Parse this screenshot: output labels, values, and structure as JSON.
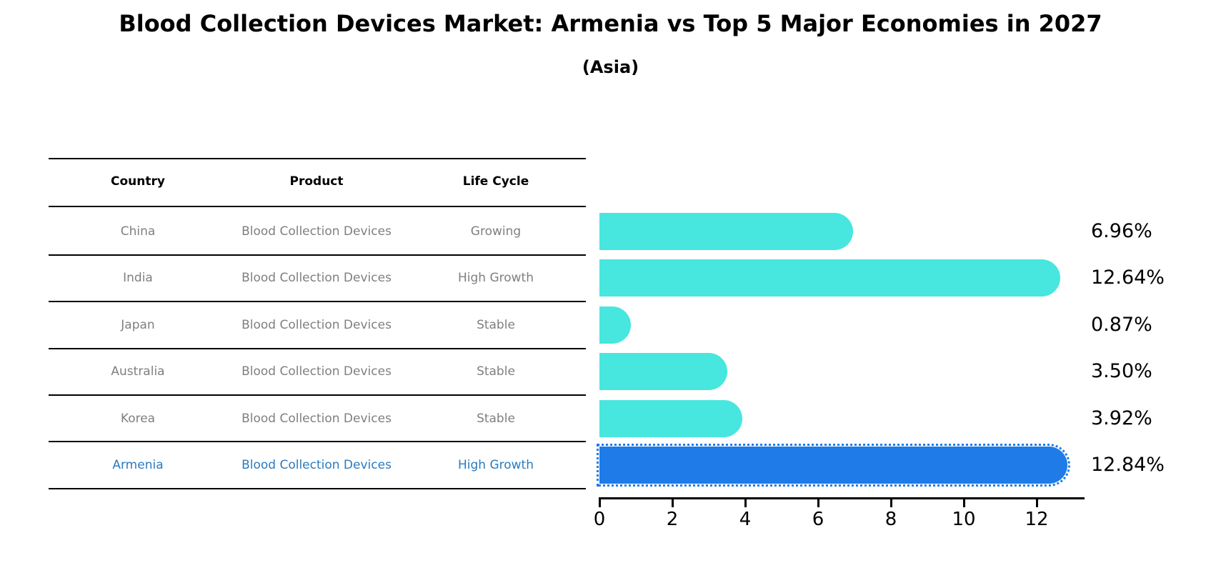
{
  "title": "Blood Collection Devices Market: Armenia vs Top 5 Major Economies in 2027",
  "subtitle": "(Asia)",
  "colors": {
    "bar": "#47e6de",
    "highlight_bar": "#1e7be8",
    "highlight_text": "#2b7bbe",
    "table_text": "#7f7f7f",
    "text": "#000000"
  },
  "table": {
    "headers": [
      "Country",
      "Product",
      "Life Cycle"
    ],
    "rows": [
      {
        "country": "China",
        "product": "Blood Collection Devices",
        "life_cycle": "Growing",
        "highlight": false
      },
      {
        "country": "India",
        "product": "Blood Collection Devices",
        "life_cycle": "High Growth",
        "highlight": false
      },
      {
        "country": "Japan",
        "product": "Blood Collection Devices",
        "life_cycle": "Stable",
        "highlight": false
      },
      {
        "country": "Australia",
        "product": "Blood Collection Devices",
        "life_cycle": "Stable",
        "highlight": false
      },
      {
        "country": "Korea",
        "product": "Blood Collection Devices",
        "life_cycle": "Stable",
        "highlight": false
      },
      {
        "country": "Armenia",
        "product": "Blood Collection Devices",
        "life_cycle": "High Growth",
        "highlight": true
      }
    ]
  },
  "chart_data": {
    "type": "bar",
    "orientation": "horizontal",
    "title": "Blood Collection Devices Market: Armenia vs Top 5 Major Economies in 2027 (Asia)",
    "categories": [
      "China",
      "India",
      "Japan",
      "Australia",
      "Korea",
      "Armenia"
    ],
    "values": [
      6.96,
      12.64,
      0.87,
      3.5,
      3.92,
      12.84
    ],
    "value_labels": [
      "6.96%",
      "12.64%",
      "0.87%",
      "3.50%",
      "3.92%",
      "12.84%"
    ],
    "xticks": [
      "0",
      "2",
      "4",
      "6",
      "8",
      "10",
      "12"
    ],
    "xlim": [
      0,
      13.3
    ],
    "grid": false,
    "legend": "none",
    "highlight_category": "Armenia",
    "bar_color": "#47e6de",
    "highlight_color": "#1e7be8"
  }
}
